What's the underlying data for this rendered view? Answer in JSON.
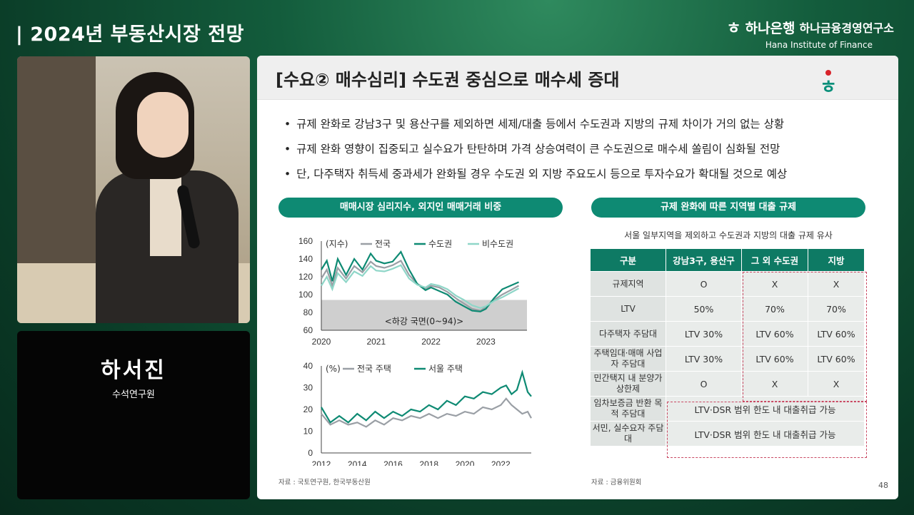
{
  "header": {
    "title": "| 2024년 부동산시장 전망",
    "brand_logo": "ㅎ",
    "brand_bank": "하나은행",
    "brand_institute": "하나금융경영연구소",
    "brand_english": "Hana Institute of Finance"
  },
  "speaker": {
    "name": "하서진",
    "role": "수석연구원"
  },
  "slide": {
    "title": "[수요② 매수심리] 수도권 중심으로 매수세 증대",
    "logo": "ㅎ",
    "bullets": [
      "규제 완화로 강남3구 및 용산구를 제외하면 세제/대출 등에서 수도권과 지방의 규제 차이가 거의 없는 상황",
      "규제 완화 영향이 집중되고 실수요가 탄탄하며 가격 상승여력이 큰 수도권으로 매수세 쏠림이 심화될 전망",
      "단, 다주택자 취득세 중과세가 완화될 경우 수도권 외 지방 주요도시 등으로 투자수요가 확대될 것으로 예상"
    ],
    "left_pill": "매매시장 심리지수, 외지인 매매거래 비중",
    "right_pill": "규제 완화에 따른 지역별 대출 규제",
    "right_subtitle": "서울 일부지역을 제외하고 수도권과 지방의 대출 규제 유사",
    "left_source": "자료 : 국토연구원, 한국부동산원",
    "right_source": "자료 : 금융위원회",
    "page_number": "48"
  },
  "table": {
    "headers": [
      "구분",
      "강남3구, 용산구",
      "그 외 수도권",
      "지방"
    ],
    "rows": [
      {
        "cat": "규제지역",
        "a": "O",
        "b": "X",
        "c": "X"
      },
      {
        "cat": "LTV",
        "a": "50%",
        "b": "70%",
        "c": "70%"
      },
      {
        "cat": "다주택자 주담대",
        "a": "LTV 30%",
        "b": "LTV 60%",
        "c": "LTV 60%"
      },
      {
        "cat": "주택임대·매매 사업자 주담대",
        "a": "LTV 30%",
        "b": "LTV 60%",
        "c": "LTV 60%"
      },
      {
        "cat": "민간택지 내 분양가상한제",
        "a": "O",
        "b": "X",
        "c": "X"
      }
    ],
    "merged_rows": [
      {
        "cat": "임차보증금 반환 목적 주담대",
        "value": "LTV·DSR 범위 한도 내 대출취급 가능"
      },
      {
        "cat": "서민, 실수요자 주담대",
        "value": "LTV·DSR 범위 한도 내 대출취급 가능"
      }
    ]
  },
  "colors": {
    "accent": "#0e8a73",
    "series_national": "#9a9fa5",
    "series_capital": "#0e8a73",
    "series_noncapital": "#8fd6c8",
    "decline_band": "#cfcfcf",
    "redbox": "#c94862"
  },
  "chart_data": [
    {
      "type": "line",
      "ylabel": "(지수)",
      "ylim": [
        60,
        160
      ],
      "yticks": [
        "60",
        "80",
        "100",
        "120",
        "140",
        "160"
      ],
      "xticks": [
        "2020",
        "2021",
        "2022",
        "2023"
      ],
      "xlim": [
        2020,
        2023.75
      ],
      "annotation": "<하강 국면(0~94)>",
      "band": [
        60,
        94
      ],
      "grid": false,
      "legend": "top",
      "series": [
        {
          "name": "전국",
          "x": [
            2020.0,
            2020.1,
            2020.2,
            2020.3,
            2020.45,
            2020.6,
            2020.75,
            2020.9,
            2021.0,
            2021.15,
            2021.3,
            2021.45,
            2021.6,
            2021.75,
            2021.9,
            2022.0,
            2022.15,
            2022.3,
            2022.45,
            2022.6,
            2022.75,
            2022.9,
            2023.0,
            2023.15,
            2023.3,
            2023.45,
            2023.6
          ],
          "y": [
            118,
            128,
            110,
            130,
            118,
            132,
            125,
            137,
            132,
            130,
            133,
            138,
            122,
            112,
            107,
            110,
            108,
            103,
            96,
            90,
            84,
            82,
            86,
            94,
            100,
            105,
            110
          ]
        },
        {
          "name": "수도권",
          "x": [
            2020.0,
            2020.1,
            2020.2,
            2020.3,
            2020.45,
            2020.6,
            2020.75,
            2020.9,
            2021.0,
            2021.15,
            2021.3,
            2021.45,
            2021.6,
            2021.75,
            2021.9,
            2022.0,
            2022.15,
            2022.3,
            2022.45,
            2022.6,
            2022.75,
            2022.9,
            2023.0,
            2023.15,
            2023.3,
            2023.45,
            2023.6
          ],
          "y": [
            128,
            138,
            115,
            140,
            122,
            140,
            128,
            146,
            138,
            135,
            137,
            148,
            128,
            112,
            105,
            108,
            104,
            100,
            92,
            87,
            82,
            81,
            84,
            96,
            106,
            110,
            114
          ]
        },
        {
          "name": "비수도권",
          "x": [
            2020.0,
            2020.1,
            2020.2,
            2020.3,
            2020.45,
            2020.6,
            2020.75,
            2020.9,
            2021.0,
            2021.15,
            2021.3,
            2021.45,
            2021.6,
            2021.75,
            2021.9,
            2022.0,
            2022.15,
            2022.3,
            2022.45,
            2022.6,
            2022.75,
            2022.9,
            2023.0,
            2023.15,
            2023.3,
            2023.45,
            2023.6
          ],
          "y": [
            110,
            120,
            106,
            124,
            114,
            126,
            121,
            132,
            127,
            126,
            129,
            133,
            118,
            111,
            108,
            112,
            110,
            106,
            99,
            94,
            88,
            85,
            87,
            93,
            97,
            102,
            107
          ]
        }
      ]
    },
    {
      "type": "line",
      "ylabel": "(%)",
      "ylim": [
        0,
        40
      ],
      "yticks": [
        "0",
        "10",
        "20",
        "30",
        "40"
      ],
      "xticks": [
        "2012",
        "2014",
        "2016",
        "2018",
        "2020",
        "2022"
      ],
      "xlim": [
        2012,
        2023.7
      ],
      "grid": false,
      "legend": "top",
      "series": [
        {
          "name": "전국 주택",
          "x": [
            2012.0,
            2012.5,
            2013.0,
            2013.5,
            2014.0,
            2014.5,
            2015.0,
            2015.5,
            2016.0,
            2016.5,
            2017.0,
            2017.5,
            2018.0,
            2018.5,
            2019.0,
            2019.5,
            2020.0,
            2020.5,
            2021.0,
            2021.5,
            2022.0,
            2022.3,
            2022.6,
            2022.9,
            2023.2,
            2023.5,
            2023.7
          ],
          "y": [
            18,
            13,
            15,
            13,
            14,
            12,
            15,
            13,
            16,
            15,
            17,
            16,
            18,
            16,
            18,
            17,
            19,
            18,
            21,
            20,
            22,
            25,
            22,
            20,
            18,
            19,
            16
          ]
        },
        {
          "name": "서울 주택",
          "x": [
            2012.0,
            2012.5,
            2013.0,
            2013.5,
            2014.0,
            2014.5,
            2015.0,
            2015.5,
            2016.0,
            2016.5,
            2017.0,
            2017.5,
            2018.0,
            2018.5,
            2019.0,
            2019.5,
            2020.0,
            2020.5,
            2021.0,
            2021.5,
            2022.0,
            2022.3,
            2022.6,
            2022.9,
            2023.2,
            2023.5,
            2023.7
          ],
          "y": [
            21,
            14,
            17,
            14,
            18,
            15,
            19,
            16,
            19,
            17,
            20,
            19,
            22,
            20,
            24,
            22,
            26,
            25,
            28,
            27,
            30,
            31,
            27,
            29,
            37,
            28,
            26
          ]
        }
      ]
    }
  ]
}
